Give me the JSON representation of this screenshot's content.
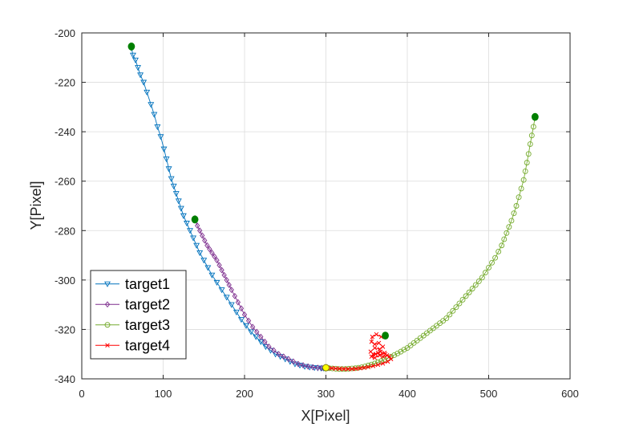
{
  "chart_data": {
    "type": "line",
    "title": "",
    "xlabel": "X[Pixel]",
    "ylabel": "Y[Pixel]",
    "xlim": [
      0,
      600
    ],
    "ylim": [
      -340,
      -200
    ],
    "xticks": [
      0,
      100,
      200,
      300,
      400,
      500,
      600
    ],
    "yticks": [
      -200,
      -220,
      -240,
      -260,
      -280,
      -300,
      -320,
      -340
    ],
    "grid": true,
    "legend_position": "bottom-left",
    "series": [
      {
        "name": "target1",
        "color": "#0072BD",
        "marker": "triangle-down",
        "x": [
          61,
          63,
          66,
          69,
          72,
          76,
          80,
          85,
          89,
          93,
          97,
          101,
          104,
          107,
          110,
          113,
          116,
          119,
          122,
          125,
          129,
          133,
          137,
          141,
          145,
          150,
          155,
          160,
          166,
          172,
          178,
          184,
          190,
          196,
          202,
          208,
          214,
          220,
          226,
          232,
          238,
          244,
          250,
          256,
          262,
          268,
          274,
          280,
          286,
          290,
          294,
          297,
          299
        ],
        "y": [
          -206,
          -209,
          -211,
          -214,
          -217,
          -220,
          -224,
          -229,
          -233,
          -238,
          -242,
          -247,
          -251,
          -255,
          -259,
          -262,
          -265,
          -268,
          -271,
          -274,
          -277,
          -280,
          -283,
          -286,
          -289,
          -292,
          -295,
          -298,
          -301,
          -304,
          -307,
          -310,
          -313,
          -316,
          -318.5,
          -321,
          -323,
          -325,
          -327,
          -328.5,
          -330,
          -331,
          -332,
          -333,
          -334,
          -334.5,
          -335,
          -335.3,
          -335.5,
          -335.6,
          -335.7,
          -335.7,
          -335.7
        ]
      },
      {
        "name": "target2",
        "color": "#7E2F8E",
        "marker": "diamond",
        "x": [
          139,
          142,
          145,
          148,
          151,
          154,
          157,
          160,
          163,
          166,
          169,
          172,
          175,
          178,
          181,
          184,
          188,
          192,
          196,
          200,
          205,
          210,
          215,
          220,
          225,
          230,
          236,
          242,
          248,
          254,
          260,
          266,
          272,
          278,
          284,
          290,
          295,
          299
        ],
        "y": [
          -275,
          -278,
          -280,
          -282,
          -284,
          -286,
          -287.5,
          -289,
          -290.5,
          -292,
          -294,
          -296,
          -298,
          -300,
          -302,
          -304,
          -306.5,
          -309,
          -311.5,
          -314,
          -316.5,
          -319,
          -321,
          -323,
          -325,
          -327,
          -328.5,
          -330,
          -331,
          -332,
          -333,
          -334,
          -334.5,
          -335,
          -335.3,
          -335.5,
          -335.6,
          -335.7
        ]
      },
      {
        "name": "target3",
        "color": "#77AC30",
        "marker": "circle",
        "x": [
          557,
          555,
          553,
          551,
          549,
          547,
          545,
          543,
          540,
          537,
          534,
          531,
          528,
          525,
          522,
          519,
          516,
          512,
          508,
          504,
          500,
          496,
          492,
          488,
          484,
          480,
          476,
          472,
          468,
          464,
          460,
          456,
          452,
          448,
          444,
          440,
          436,
          432,
          428,
          424,
          420,
          416,
          412,
          408,
          404,
          400,
          396,
          392,
          388,
          384,
          380,
          376,
          372,
          368,
          364,
          360,
          356,
          352,
          348,
          344,
          340,
          336,
          332,
          328,
          324,
          320,
          316,
          312,
          308,
          304,
          300
        ],
        "y": [
          -234,
          -238,
          -241.5,
          -245,
          -249,
          -252.5,
          -256,
          -259.5,
          -263,
          -266.5,
          -270,
          -273,
          -276,
          -278.5,
          -281,
          -283.5,
          -286,
          -288.5,
          -291,
          -293,
          -295,
          -297,
          -299,
          -300.5,
          -302,
          -303.5,
          -305,
          -306.5,
          -308,
          -309.5,
          -311,
          -312.5,
          -314,
          -315.5,
          -316.5,
          -317.5,
          -318.5,
          -319.5,
          -320.5,
          -321.5,
          -322.5,
          -323.5,
          -324.5,
          -325.5,
          -326.5,
          -327.5,
          -328.2,
          -329,
          -329.7,
          -330.4,
          -331,
          -331.6,
          -332.2,
          -332.8,
          -333.3,
          -333.8,
          -334.2,
          -334.6,
          -335,
          -335.3,
          -335.5,
          -335.7,
          -335.8,
          -335.9,
          -336,
          -336,
          -336,
          -335.9,
          -335.8,
          -335.7,
          -335.6
        ]
      },
      {
        "name": "target4",
        "color": "#FF0000",
        "marker": "x",
        "x": [
          373,
          368,
          362,
          357,
          356,
          360,
          365,
          370,
          366,
          360,
          355,
          358,
          364,
          370,
          375,
          372,
          366,
          360,
          356,
          361,
          367,
          373,
          378,
          380,
          376,
          370,
          364,
          358,
          352,
          347,
          342,
          337,
          332,
          327,
          322,
          317,
          312,
          307,
          302
        ],
        "y": [
          -322,
          -323,
          -322,
          -323,
          -325,
          -326,
          -325.5,
          -327,
          -328,
          -327.5,
          -329,
          -330,
          -329.5,
          -331,
          -330.5,
          -329.5,
          -330.5,
          -331.5,
          -331,
          -330,
          -329,
          -330,
          -331,
          -332,
          -333,
          -333.8,
          -334.3,
          -334.8,
          -335.2,
          -335.5,
          -335.7,
          -335.9,
          -336,
          -336,
          -336,
          -335.9,
          -335.8,
          -335.7,
          -335.6
        ]
      }
    ],
    "start_markers": {
      "color": "#007F00",
      "points": [
        {
          "x": 61,
          "y": -205.5
        },
        {
          "x": 139,
          "y": -275.5
        },
        {
          "x": 557,
          "y": -234
        },
        {
          "x": 373,
          "y": -322.5
        }
      ]
    },
    "end_marker": {
      "color": "#FFFF00",
      "edge_color": "#808000",
      "x": 300,
      "y": -335.5
    }
  }
}
